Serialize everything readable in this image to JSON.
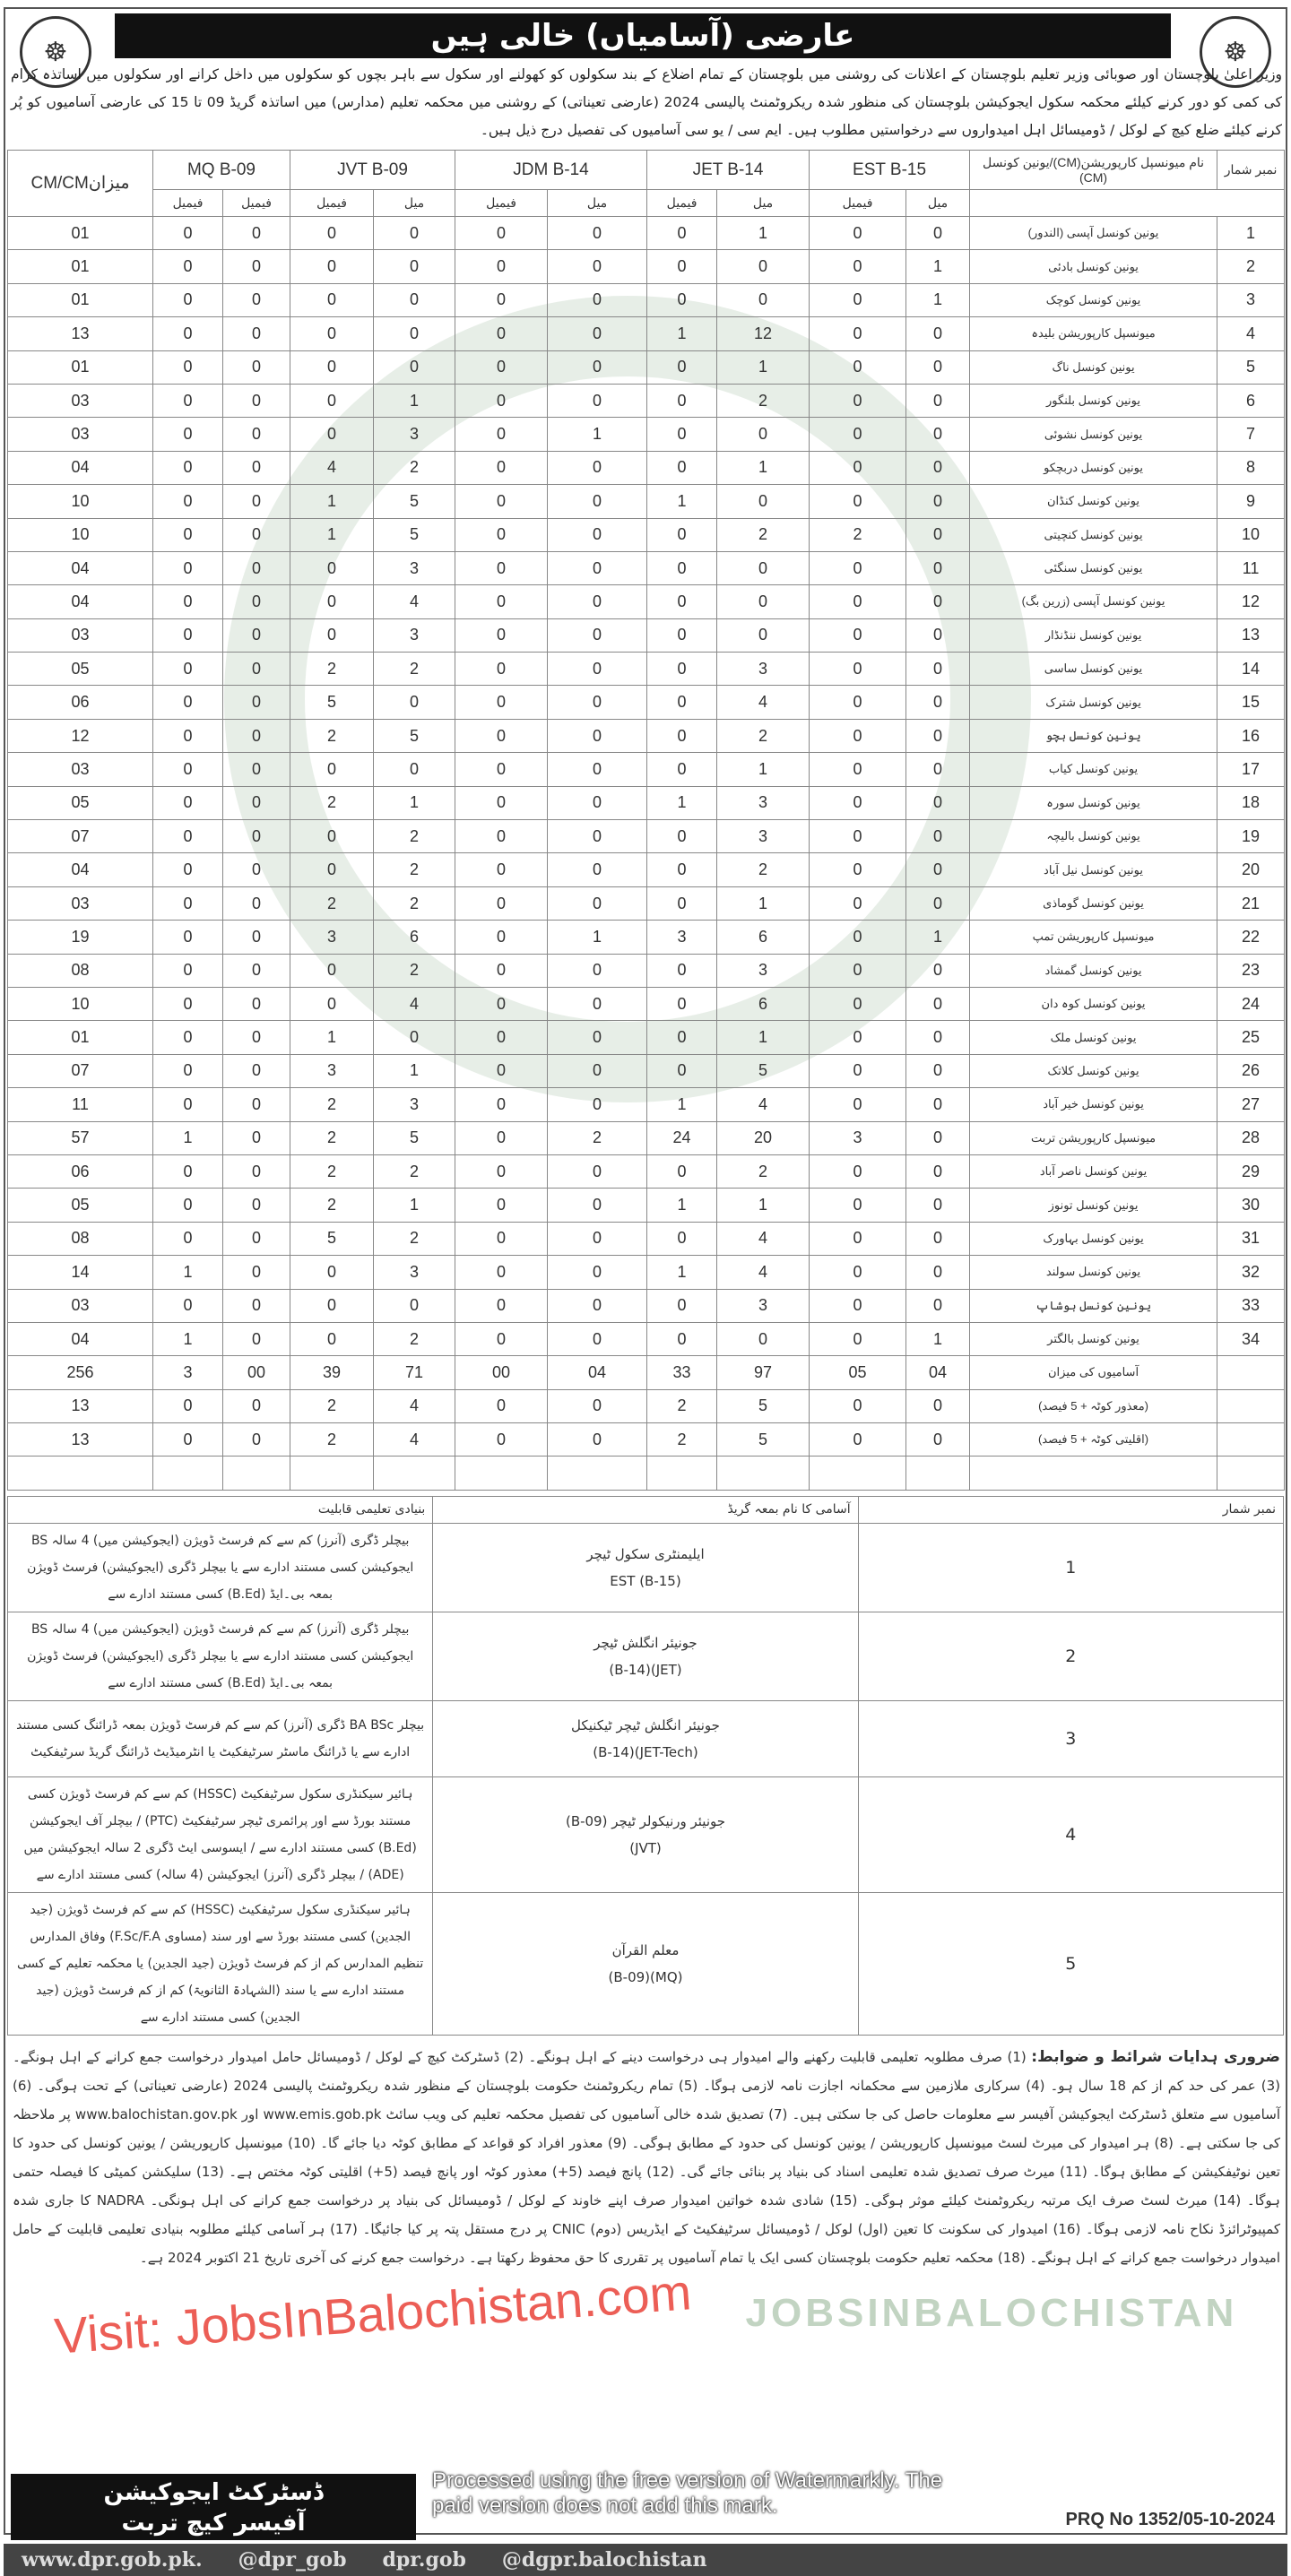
{
  "header": {
    "title": "عارضی (آسامیاں) خالی ہیں",
    "logo_left": "☸",
    "logo_right": "☸",
    "intro": "وزیر اعلیٰ بلوچستان اور صوبائی وزیر تعلیم بلوچستان کے اعلانات کی روشنی میں بلوچستان کے تمام اضلاع کے بند سکولوں کو کھولنے اور سکول سے باہر بچوں کو سکولوں میں داخل کرانے اور سکولوں میں اساتذہ کرام کی کمی کو دور کرنے کیلئے محکمہ سکول ایجوکیشن بلوچستان کی منظور شدہ ریکروٹمنٹ پالیسی 2024 (عارضی تعیناتی) کے روشنی میں محکمہ تعلیم (مدارس) میں اساتذہ گریڈ 09 تا 15 کی عارضی آسامیوں کو پُر کرنے کیلئے ضلع کیچ کے لوکل / ڈومیسائل اہل امیدواروں سے درخواستیں مطلوب ہیں۔ ایم سی / یو سی آسامیوں کی تفصیل درج ذیل ہیں۔"
  },
  "vacancy_table": {
    "headers": {
      "serial": "نمبر شمار",
      "name": "نام میونسپل کارپوریشن(CM)/یونین کونسل (CM)",
      "est": "EST B-15",
      "jet": "JET B-14",
      "jdm": "JDM B-14",
      "jvt": "JVT B-09",
      "mq": "MQ B-09",
      "total": "CM/CMمیزان"
    },
    "sub": {
      "male": "میل",
      "female": "فیمیل"
    },
    "rows": [
      [
        "1",
        "یونین کونسل آپسی (الندور)",
        "0",
        "0",
        "1",
        "0",
        "0",
        "0",
        "0",
        "0",
        "0",
        "0",
        "01"
      ],
      [
        "2",
        "یونین کونسل بادئی",
        "1",
        "0",
        "0",
        "0",
        "0",
        "0",
        "0",
        "0",
        "0",
        "0",
        "01"
      ],
      [
        "3",
        "یونین کونسل کوچک",
        "1",
        "0",
        "0",
        "0",
        "0",
        "0",
        "0",
        "0",
        "0",
        "0",
        "01"
      ],
      [
        "4",
        "میونسپل کارپوریشن بلیدہ",
        "0",
        "0",
        "12",
        "1",
        "0",
        "0",
        "0",
        "0",
        "0",
        "0",
        "13"
      ],
      [
        "5",
        "یونین کونسل ناگ",
        "0",
        "0",
        "1",
        "0",
        "0",
        "0",
        "0",
        "0",
        "0",
        "0",
        "01"
      ],
      [
        "6",
        "یونین کونسل بلنگور",
        "0",
        "0",
        "2",
        "0",
        "0",
        "0",
        "1",
        "0",
        "0",
        "0",
        "03"
      ],
      [
        "7",
        "یونین کونسل نشوئی",
        "0",
        "0",
        "0",
        "0",
        "1",
        "0",
        "3",
        "0",
        "0",
        "0",
        "03"
      ],
      [
        "8",
        "یونین کونسل دربچکو",
        "0",
        "0",
        "1",
        "0",
        "0",
        "0",
        "2",
        "4",
        "0",
        "0",
        "04"
      ],
      [
        "9",
        "یونین کونسل کنڈان",
        "0",
        "0",
        "0",
        "1",
        "0",
        "0",
        "5",
        "1",
        "0",
        "0",
        "10"
      ],
      [
        "10",
        "یونین کونسل کنچیتی",
        "0",
        "2",
        "2",
        "0",
        "0",
        "0",
        "5",
        "1",
        "0",
        "0",
        "10"
      ],
      [
        "11",
        "یونین کونسل سنگئی",
        "0",
        "0",
        "0",
        "0",
        "0",
        "0",
        "3",
        "0",
        "0",
        "0",
        "04"
      ],
      [
        "12",
        "یونین کونسل آپسی (زرین بگ)",
        "0",
        "0",
        "0",
        "0",
        "0",
        "0",
        "4",
        "0",
        "0",
        "0",
        "04"
      ],
      [
        "13",
        "یونین کونسل ننڈنڈار",
        "0",
        "0",
        "0",
        "0",
        "0",
        "0",
        "3",
        "0",
        "0",
        "0",
        "03"
      ],
      [
        "14",
        "یونین کونسل ساسی",
        "0",
        "0",
        "3",
        "0",
        "0",
        "0",
        "2",
        "2",
        "0",
        "0",
        "05"
      ],
      [
        "15",
        "یونین کونسل شترک",
        "0",
        "0",
        "4",
        "0",
        "0",
        "0",
        "0",
        "5",
        "0",
        "0",
        "06"
      ],
      [
        "16",
        "یونین کونسل ہچو",
        "0",
        "0",
        "2",
        "0",
        "0",
        "0",
        "5",
        "2",
        "0",
        "0",
        "12"
      ],
      [
        "17",
        "یونین کونسل کیاب",
        "0",
        "0",
        "1",
        "0",
        "0",
        "0",
        "0",
        "0",
        "0",
        "0",
        "03"
      ],
      [
        "18",
        "یونین کونسل سورہ",
        "0",
        "0",
        "3",
        "1",
        "0",
        "0",
        "1",
        "2",
        "0",
        "0",
        "05"
      ],
      [
        "19",
        "یونین کونسل بالیچہ",
        "0",
        "0",
        "3",
        "0",
        "0",
        "0",
        "2",
        "0",
        "0",
        "0",
        "07"
      ],
      [
        "20",
        "یونین کونسل نیل آباد",
        "0",
        "0",
        "2",
        "0",
        "0",
        "0",
        "2",
        "0",
        "0",
        "0",
        "04"
      ],
      [
        "21",
        "یونین کونسل گوماذی",
        "0",
        "0",
        "1",
        "0",
        "0",
        "0",
        "2",
        "2",
        "0",
        "0",
        "03"
      ],
      [
        "22",
        "میونسپل کارپوریشن تمپ",
        "1",
        "0",
        "6",
        "3",
        "1",
        "0",
        "6",
        "3",
        "0",
        "0",
        "19"
      ],
      [
        "23",
        "یونین کونسل گمشاد",
        "0",
        "0",
        "3",
        "0",
        "0",
        "0",
        "2",
        "0",
        "0",
        "0",
        "08"
      ],
      [
        "24",
        "یونین کونسل کوہ دان",
        "0",
        "0",
        "6",
        "0",
        "0",
        "0",
        "4",
        "0",
        "0",
        "0",
        "10"
      ],
      [
        "25",
        "یونین کونسل ملک",
        "0",
        "0",
        "1",
        "0",
        "0",
        "0",
        "0",
        "1",
        "0",
        "0",
        "01"
      ],
      [
        "26",
        "یونین کونسل کلاتک",
        "0",
        "0",
        "5",
        "0",
        "0",
        "0",
        "1",
        "3",
        "0",
        "0",
        "07"
      ],
      [
        "27",
        "یونین کونسل خیر آباد",
        "0",
        "0",
        "4",
        "1",
        "0",
        "0",
        "3",
        "2",
        "0",
        "0",
        "11"
      ],
      [
        "28",
        "میونسپل کارپوریشن تربت",
        "0",
        "3",
        "20",
        "24",
        "2",
        "0",
        "5",
        "2",
        "0",
        "1",
        "57"
      ],
      [
        "29",
        "یونین کونسل ناصر آباد",
        "0",
        "0",
        "2",
        "0",
        "0",
        "0",
        "2",
        "2",
        "0",
        "0",
        "06"
      ],
      [
        "30",
        "یونین کونسل تونوز",
        "0",
        "0",
        "1",
        "1",
        "0",
        "0",
        "1",
        "2",
        "0",
        "0",
        "05"
      ],
      [
        "31",
        "یونین کونسل بہاورک",
        "0",
        "0",
        "4",
        "0",
        "0",
        "0",
        "2",
        "5",
        "0",
        "0",
        "08"
      ],
      [
        "32",
        "یونین کونسل سولند",
        "0",
        "0",
        "4",
        "1",
        "0",
        "0",
        "3",
        "0",
        "0",
        "1",
        "14"
      ],
      [
        "33",
        "یونین کونسل ہوشاپ",
        "0",
        "0",
        "3",
        "0",
        "0",
        "0",
        "0",
        "0",
        "0",
        "0",
        "03"
      ],
      [
        "34",
        "یونین کونسل بالگتر",
        "1",
        "0",
        "0",
        "0",
        "0",
        "0",
        "2",
        "0",
        "0",
        "1",
        "04"
      ],
      [
        "",
        "آسامیوں کی میزان",
        "04",
        "05",
        "97",
        "33",
        "04",
        "00",
        "71",
        "39",
        "00",
        "3",
        "256"
      ],
      [
        "",
        "(معذور کوٹہ + 5 فیصد)",
        "0",
        "0",
        "5",
        "2",
        "0",
        "0",
        "4",
        "2",
        "0",
        "0",
        "13"
      ],
      [
        "",
        "(اقلیتی کوٹہ + 5 فیصد)",
        "0",
        "0",
        "5",
        "2",
        "0",
        "0",
        "4",
        "2",
        "0",
        "0",
        "13"
      ],
      [
        "",
        "",
        "",
        "",
        "",
        "",
        "",
        "",
        "",
        "",
        "",
        "",
        ""
      ]
    ]
  },
  "qualification_table": {
    "headers": {
      "serial": "نمبر شمار",
      "post": "آسامی کا نام بمعہ گریڈ",
      "qualification": "بنیادی تعلیمی قابلیت"
    },
    "rows": [
      {
        "sn": "1",
        "post_ur": "ایلیمنٹری سکول ٹیچر",
        "post_en": "EST (B-15)",
        "q": "بیچلر ڈگری (آنرز) کم سے کم فرسٹ ڈویژن (ایجوکیشن میں) 4 سالہ BS ایجوکیشن کسی مستند ادارے سے یا بیچلر ڈگری (ایجوکیشن) فرسٹ ڈویژن بمعہ بی۔ایڈ (B.Ed) کسی مستند ادارے سے"
      },
      {
        "sn": "2",
        "post_ur": "جونیئر انگلش ٹیچر",
        "post_en": "(JET)(B-14)",
        "q": "بیچلر ڈگری (آنرز) کم سے کم فرسٹ ڈویژن (ایجوکیشن میں) 4 سالہ BS ایجوکیشن کسی مستند ادارے سے یا بیچلر ڈگری (ایجوکیشن) فرسٹ ڈویژن بمعہ بی۔ایڈ (B.Ed) کسی مستند ادارے سے"
      },
      {
        "sn": "3",
        "post_ur": "جونیئر انگلش ٹیچر ٹیکنیکل",
        "post_en": "(JET-Tech)(B-14)",
        "q": "بیچلر BA BSc ڈگری (آنرز) کم سے کم فرسٹ ڈویژن بمعہ ڈرائنگ کسی مستند ادارے سے یا ڈرائنگ ماسٹر سرٹیفکیٹ یا انٹرمیڈیٹ ڈرائنگ گریڈ سرٹیفکیٹ"
      },
      {
        "sn": "4",
        "post_ur": "جونیئر ورنیکولر ٹیچر (B-09)",
        "post_en": "(JVT)",
        "q": "ہائیر سیکنڈری سکول سرٹیفکیٹ (HSSC) کم سے کم فرسٹ ڈویژن کسی مستند بورڈ سے اور پرائمری ٹیچر سرٹیفکیٹ (PTC) / بیچلر آف ایجوکیشن (B.Ed) کسی مستند ادارے سے / ایسوسی ایٹ ڈگری 2 سالہ ایجوکیشن میں (ADE) / بیچلر ڈگری (آنرز) ایجوکیشن (4 سالہ) کسی مستند ادارے سے"
      },
      {
        "sn": "5",
        "post_ur": "معلم القرآن",
        "post_en": "(MQ)(B-09)",
        "q": "ہائیر سیکنڈری سکول سرٹیفکیٹ (HSSC) کم سے کم فرسٹ ڈویژن (جید الجدین) کسی مستند بورڈ سے اور سند (مساوی F.Sc/F.A) وفاق المدارس تنظیم المدارس کم از کم فرسٹ ڈویژن (جید الجدین) یا محکمہ تعلیم کے کسی مستند ادارے سے یا سند (الشہادۃ الثانویۃ) کم از کم فرسٹ ڈویژن (جید الجدین) کسی مستند ادارے سے"
      }
    ]
  },
  "terms": {
    "title": "ضروری ہدایات شرائط و ضوابط:",
    "text": "(1) صرف مطلوبہ تعلیمی قابلیت رکھنے والے امیدوار ہی درخواست دینے کے اہل ہونگے۔ (2) ڈسٹرکٹ کیچ کے لوکل / ڈومیسائل حامل امیدوار درخواست جمع کرانے کے اہل ہونگے۔ (3) عمر کی حد کم از کم 18 سال ہو۔ (4) سرکاری ملازمین سے محکمانہ اجازت نامہ لازمی ہوگا۔ (5) تمام ریکروٹمنٹ حکومت بلوچستان کے منظور شدہ ریکروٹمنٹ پالیسی 2024 (عارضی تعیناتی) کے تحت ہوگی۔ (6) آسامیوں سے متعلق ڈسٹرکٹ ایجوکیشن آفیسر سے معلومات حاصل کی جا سکتی ہیں۔ (7) تصدیق شدہ خالی آسامیوں کی تفصیل محکمہ تعلیم کی ویب سائٹ www.emis.gob.pk اور www.balochistan.gov.pk پر ملاحظہ کی جا سکتی ہے۔ (8) ہر امیدوار کی میرٹ لسٹ میونسپل کارپوریشن / یونین کونسل کی حدود کے مطابق ہوگی۔ (9) معذور افراد کو قواعد کے مطابق کوٹہ دیا جائے گا۔ (10) میونسپل کارپوریشن / یونین کونسل کی حدود کا تعین نوٹیفکیشن کے مطابق ہوگا۔ (11) میرٹ صرف تصدیق شدہ تعلیمی اسناد کی بنیاد پر بنائی جائے گی۔ (12) پانچ فیصد (5+) معذور کوٹہ اور پانچ فیصد (5+) اقلیتی کوٹہ مختص ہے۔ (13) سلیکشن کمیٹی کا فیصلہ حتمی ہوگا۔ (14) میرٹ لسٹ صرف ایک مرتبہ ریکروٹمنٹ کیلئے موثر ہوگی۔ (15) شادی شدہ خواتین امیدوار صرف اپنے خاوند کے لوکل / ڈومیسائل کی بنیاد پر درخواست جمع کرانے کی اہل ہونگی۔ NADRA کا جاری شدہ کمپیوٹرائزڈ نکاح نامہ لازمی ہوگا۔ (16) امیدوار کی سکونت کا تعین (اول) لوکل / ڈومیسائل سرٹیفکیٹ کے ایڈریس (دوم) CNIC پر درج مستقل پتہ پر کیا جائیگا۔ (17) ہر آسامی کیلئے مطلوبہ بنیادی تعلیمی قابلیت کے حامل امیدوار درخواست جمع کرانے کے اہل ہونگے۔ (18) محکمہ تعلیم حکومت بلوچستان کسی ایک یا تمام آسامیوں پر تقرری کا حق محفوظ رکھتا ہے۔ درخواست جمع کرنے کی آخری تاریخ 21 اکتوبر 2024 ہے۔"
  },
  "footer": {
    "dept_line1": "ڈسٹرکٹ ایجوکیشن",
    "dept_line2": "آفیسر کیچ تربت",
    "prq": "PRQ No 1352/05-10-2024",
    "links": [
      "www.dpr.gob.pk.",
      "@dpr_gob",
      "dpr.gob",
      "@dgpr.balochistan"
    ]
  },
  "watermarks": {
    "site": "Visit: JobsInBalochistan.com",
    "tool": "Processed using the free version of Watermarkly. The paid version does not add this mark.",
    "bg_text": "JOBSINBALOCHISTAN"
  },
  "colors": {
    "banner": "#111111",
    "watermark_red": "#e6281e",
    "watermark_green": "#78a078"
  }
}
